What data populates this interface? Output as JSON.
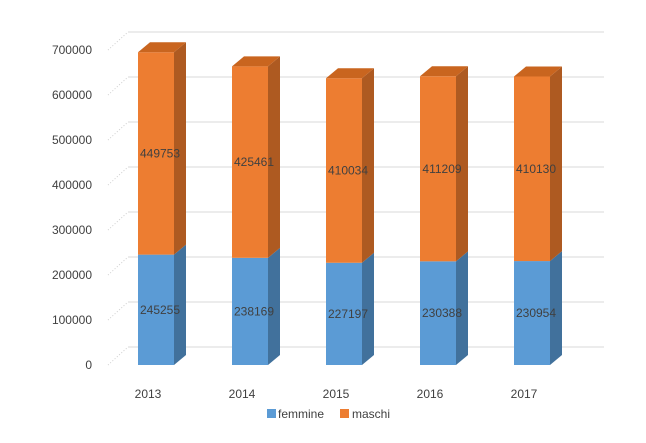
{
  "chart_data": {
    "type": "bar",
    "subtype": "stacked-3d",
    "title": "",
    "xlabel": "",
    "ylabel": "",
    "categories": [
      "2013",
      "2014",
      "2015",
      "2016",
      "2017"
    ],
    "series": [
      {
        "name": "femmine",
        "color": "#5B9BD5",
        "side_color": "#41719C",
        "top_color": "#4A86BF",
        "values": [
          245255,
          238169,
          227197,
          230388,
          230954
        ],
        "labels": [
          "245255",
          "238169",
          "227197",
          "230388",
          "230954"
        ]
      },
      {
        "name": "maschi",
        "color": "#ED7D31",
        "side_color": "#AE5A21",
        "top_color": "#C9651F",
        "values": [
          449753,
          425461,
          410034,
          411209,
          410130
        ],
        "labels": [
          "449753",
          "425461",
          "410034",
          "411209",
          "410130"
        ]
      }
    ],
    "ylim": [
      0,
      700000
    ],
    "yticks": [
      0,
      100000,
      200000,
      300000,
      400000,
      500000,
      600000,
      700000
    ],
    "ytick_labels": [
      "0",
      "100000",
      "200000",
      "300000",
      "400000",
      "500000",
      "600000",
      "700000"
    ],
    "grid": true,
    "legend": "bottom-center"
  }
}
